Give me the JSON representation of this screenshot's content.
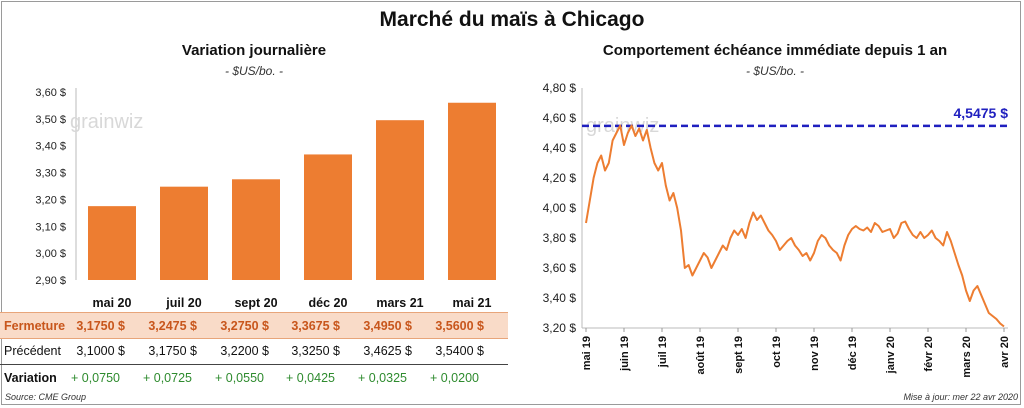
{
  "title": "Marché du maïs à Chicago",
  "left": {
    "title": "Variation journalière",
    "unit": "- $US/bo. -",
    "watermark": "grainwiz"
  },
  "right": {
    "title": "Comportement échéance immédiate depuis 1 an",
    "unit": "- $US/bo. -",
    "watermark": "grainwiz",
    "ref_label": "4,5475 $"
  },
  "table": {
    "close_label": "Fermeture",
    "prev_label": "Précédent",
    "var_label": "Variation",
    "close": [
      "3,1750 $",
      "3,2475 $",
      "3,2750 $",
      "3,3675 $",
      "3,4950 $",
      "3,5600 $"
    ],
    "prev": [
      "3,1000 $",
      "3,1750 $",
      "3,2200 $",
      "3,3250 $",
      "3,4625 $",
      "3,5400 $"
    ],
    "var": [
      "+ 0,0750",
      "+ 0,0725",
      "+ 0,0550",
      "+ 0,0425",
      "+ 0,0325",
      "+ 0,0200"
    ]
  },
  "footer": {
    "source": "Source: CME Group",
    "update": "Mise à jour: mer 22 avr 2020"
  },
  "colors": {
    "bar": "#ed7d31",
    "line": "#ed7d31",
    "ref_line": "#1f1fbf",
    "positive": "#2e8b2e"
  },
  "chart_data": [
    {
      "type": "bar",
      "categories": [
        "mai 20",
        "juil 20",
        "sept 20",
        "déc 20",
        "mars 21",
        "mai 21"
      ],
      "values": [
        3.175,
        3.2475,
        3.275,
        3.3675,
        3.495,
        3.56
      ],
      "ylim": [
        2.9,
        3.6
      ],
      "yticks": [
        "2,90 $",
        "3,00 $",
        "3,10 $",
        "3,20 $",
        "3,30 $",
        "3,40 $",
        "3,50 $",
        "3,60 $"
      ],
      "grid": false
    },
    {
      "type": "line",
      "x_labels": [
        "mai 19",
        "juin 19",
        "juil 19",
        "août 19",
        "sept 19",
        "oct 19",
        "nov 19",
        "déc 19",
        "janv 20",
        "févr 20",
        "mars 20",
        "avr 20"
      ],
      "ylim": [
        3.2,
        4.8
      ],
      "yticks": [
        "3,20 $",
        "3,40 $",
        "3,60 $",
        "3,80 $",
        "4,00 $",
        "4,20 $",
        "4,40 $",
        "4,60 $",
        "4,80 $"
      ],
      "reference_line": 4.5475,
      "values": [
        3.9,
        4.05,
        4.2,
        4.3,
        4.35,
        4.25,
        4.3,
        4.45,
        4.5,
        4.55,
        4.42,
        4.5,
        4.55,
        4.48,
        4.53,
        4.45,
        4.52,
        4.4,
        4.3,
        4.25,
        4.3,
        4.15,
        4.05,
        4.1,
        4.0,
        3.85,
        3.6,
        3.62,
        3.55,
        3.6,
        3.65,
        3.7,
        3.67,
        3.6,
        3.65,
        3.7,
        3.75,
        3.72,
        3.8,
        3.85,
        3.82,
        3.86,
        3.8,
        3.9,
        3.97,
        3.92,
        3.95,
        3.9,
        3.85,
        3.82,
        3.78,
        3.72,
        3.75,
        3.78,
        3.8,
        3.75,
        3.72,
        3.68,
        3.7,
        3.65,
        3.7,
        3.78,
        3.82,
        3.8,
        3.75,
        3.72,
        3.7,
        3.65,
        3.75,
        3.82,
        3.86,
        3.88,
        3.86,
        3.85,
        3.87,
        3.84,
        3.9,
        3.88,
        3.84,
        3.85,
        3.86,
        3.8,
        3.83,
        3.9,
        3.91,
        3.86,
        3.82,
        3.8,
        3.84,
        3.8,
        3.82,
        3.85,
        3.8,
        3.78,
        3.75,
        3.84,
        3.78,
        3.7,
        3.62,
        3.55,
        3.45,
        3.38,
        3.45,
        3.48,
        3.42,
        3.36,
        3.3,
        3.28,
        3.26,
        3.23,
        3.21
      ]
    }
  ]
}
